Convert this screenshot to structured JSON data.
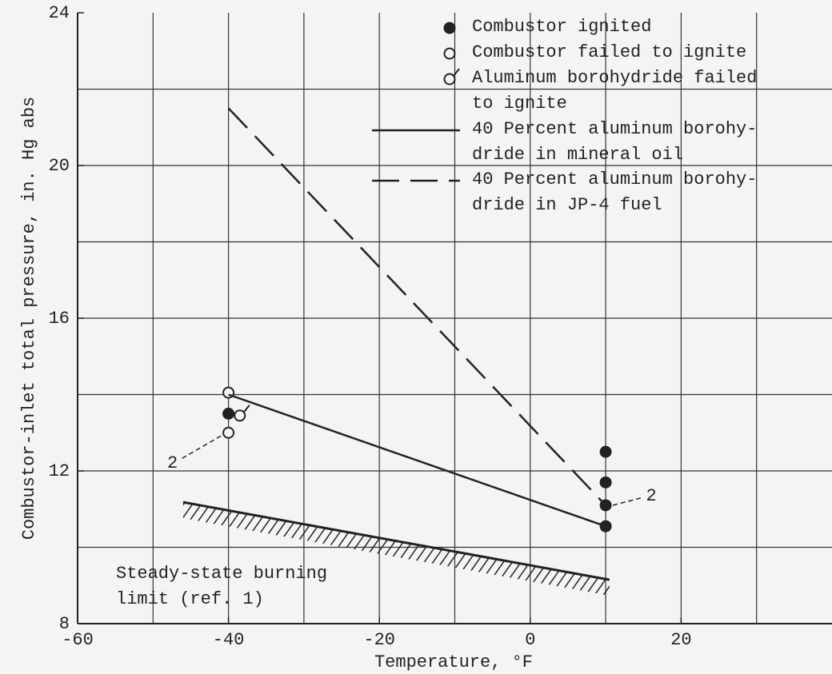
{
  "chart_data": {
    "type": "scatter",
    "xlabel": "Temperature, °F",
    "ylabel": "Combustor-inlet total pressure, in. Hg abs",
    "xlim": [
      -60,
      40
    ],
    "ylim": [
      8,
      24
    ],
    "xticks": [
      -60,
      -40,
      -20,
      0,
      20
    ],
    "yticks": [
      8,
      12,
      16,
      20,
      24
    ],
    "xgrid": [
      -50,
      -40,
      -30,
      -20,
      -10,
      0,
      10,
      20,
      30
    ],
    "ygrid": [
      10,
      12,
      14,
      16,
      18,
      20,
      22
    ],
    "grid": true,
    "color": "#222222",
    "series": [
      {
        "name": "Combustor ignited",
        "marker": "filled",
        "x": [
          -40,
          10,
          10,
          10,
          10
        ],
        "values": [
          13.5,
          12.5,
          11.7,
          11.1,
          10.55
        ]
      },
      {
        "name": "Combustor failed to ignite",
        "marker": "open",
        "x": [
          -40,
          -40
        ],
        "values": [
          14.05,
          13.0
        ]
      },
      {
        "name": "Aluminum borohydride failed\nto ignite",
        "marker": "flag",
        "x": [
          -38.5
        ],
        "values": [
          13.45
        ]
      },
      {
        "name": "40 Percent aluminum borohy-\ndride in mineral oil",
        "line": "solid",
        "x": [
          -40,
          10
        ],
        "values": [
          14.0,
          10.55
        ]
      },
      {
        "name": "40 Percent aluminum borohy-\ndride in JP-4 fuel",
        "line": "dashed",
        "x": [
          -40,
          10
        ],
        "values": [
          21.5,
          11.1
        ]
      }
    ],
    "boundary": {
      "label": "Steady-state burning\nlimit (ref. 1)",
      "x": [
        -46,
        10.5
      ],
      "values": [
        11.18,
        9.15
      ]
    },
    "annotations": [
      {
        "text": "2",
        "x": -40,
        "y": 13.0
      },
      {
        "text": "2",
        "x": 10,
        "y": 11.1
      }
    ]
  }
}
